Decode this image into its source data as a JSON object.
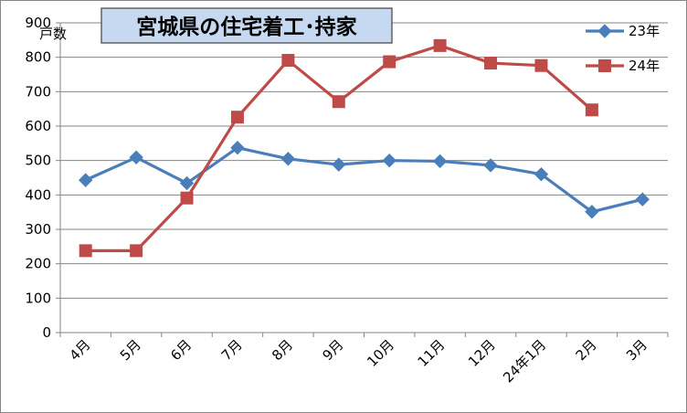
{
  "chart_data": {
    "type": "line",
    "title": "宮城県の住宅着工･持家",
    "ylabel": "戸数",
    "xlabel": "",
    "categories": [
      "4月",
      "5月",
      "6月",
      "7月",
      "8月",
      "9月",
      "10月",
      "11月",
      "12月",
      "24年1月",
      "2月",
      "3月"
    ],
    "ylim": [
      0,
      900
    ],
    "yticks": [
      0,
      100,
      200,
      300,
      400,
      500,
      600,
      700,
      800,
      900
    ],
    "grid": true,
    "legend_position": "top-right",
    "series": [
      {
        "name": "23年",
        "color": "#4A7EBB",
        "marker": "diamond",
        "values": [
          443,
          509,
          434,
          537,
          505,
          488,
          500,
          498,
          486,
          460,
          351,
          387
        ]
      },
      {
        "name": "24年",
        "color": "#BE4B48",
        "marker": "square",
        "values": [
          238,
          238,
          391,
          626,
          791,
          671,
          787,
          834,
          783,
          776,
          647,
          null
        ]
      }
    ]
  }
}
